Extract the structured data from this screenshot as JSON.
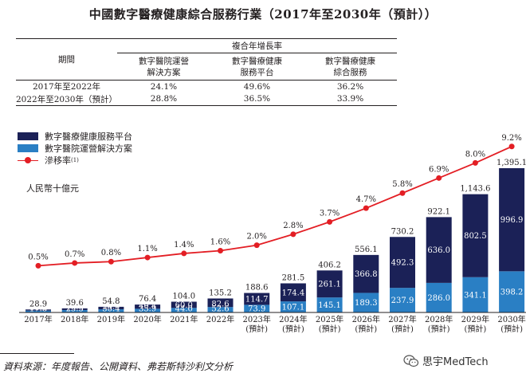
{
  "title": "中國數字醫療健康綜合服務行業（2017年至2030年（預計））",
  "cagr_table": {
    "group_header": "複合年增長率",
    "period_header": "期間",
    "columns": [
      "數字醫院運營\n解決方案",
      "數字醫療健康\n服務平台",
      "數字醫療健康\n綜合服務"
    ],
    "rows": [
      {
        "period": "2017年至2022年",
        "values": [
          "24.1%",
          "49.6%",
          "36.2%"
        ]
      },
      {
        "period": "2022年至2030年（預計）",
        "values": [
          "28.8%",
          "36.5%",
          "33.9%"
        ]
      }
    ]
  },
  "legend": {
    "platform": "數字醫療健康服務平台",
    "hospital": "數字醫院運營解決方案",
    "rate": "滲移率",
    "rate_note": "(1)"
  },
  "unit": "人民幣十億元",
  "colors": {
    "platform": "#1b2157",
    "hospital": "#2a7fc4",
    "rate": "#e31e24"
  },
  "chart_data": {
    "type": "bar",
    "stacked": true,
    "categories": [
      "2017年",
      "2018年",
      "2019年",
      "2020年",
      "2021年",
      "2022年",
      "2023年\n(預計)",
      "2024年\n(預計)",
      "2025年\n(預計)",
      "2026年\n(預計)",
      "2027年\n(預計)",
      "2028年\n(預計)",
      "2029年\n(預計)",
      "2030年\n(預計)"
    ],
    "series": [
      {
        "name": "數字醫院運營解決方案",
        "values": [
          17.8,
          23.5,
          30.4,
          35.9,
          44.0,
          52.6,
          73.9,
          107.1,
          145.1,
          189.3,
          237.9,
          286.0,
          341.1,
          398.2
        ]
      },
      {
        "name": "數字醫療健康服務平台",
        "values": [
          11.0,
          16.0,
          24.4,
          40.4,
          60.0,
          82.6,
          114.7,
          174.4,
          261.1,
          366.8,
          492.3,
          636.0,
          802.5,
          996.9
        ]
      }
    ],
    "totals": [
      "28.9",
      "39.6",
      "54.8",
      "76.4",
      "104.0",
      "135.2",
      "188.6",
      "281.5",
      "406.2",
      "556.1",
      "730.2",
      "922.1",
      "1,143.6",
      "1,395.1"
    ],
    "hospital_labels": [
      "17.8",
      "23.5",
      "30.4",
      "35.9",
      "44.0",
      "52.6",
      "73.9",
      "107.1",
      "145.1",
      "189.3",
      "237.9",
      "286.0",
      "341.1",
      "398.2"
    ],
    "platform_labels": [
      "11.0",
      "16.0",
      "24.4",
      "40.4",
      "60.0",
      "82.6",
      "114.7",
      "174.4",
      "261.1",
      "366.8",
      "492.3",
      "636.0",
      "802.5",
      "996.9"
    ],
    "line": {
      "name": "滲移率",
      "values": [
        0.5,
        0.7,
        0.8,
        1.1,
        1.4,
        1.6,
        2.0,
        2.8,
        3.7,
        4.7,
        5.8,
        6.9,
        8.0,
        9.2
      ],
      "labels": [
        "0.5%",
        "0.7%",
        "0.8%",
        "1.1%",
        "1.4%",
        "1.6%",
        "2.0%",
        "2.8%",
        "3.7%",
        "4.7%",
        "5.8%",
        "6.9%",
        "8.0%",
        "9.2%"
      ]
    }
  },
  "source": "資料來源：年度報告、公開資料、弗若斯特沙利文分析",
  "watermark": "思宇MedTech"
}
